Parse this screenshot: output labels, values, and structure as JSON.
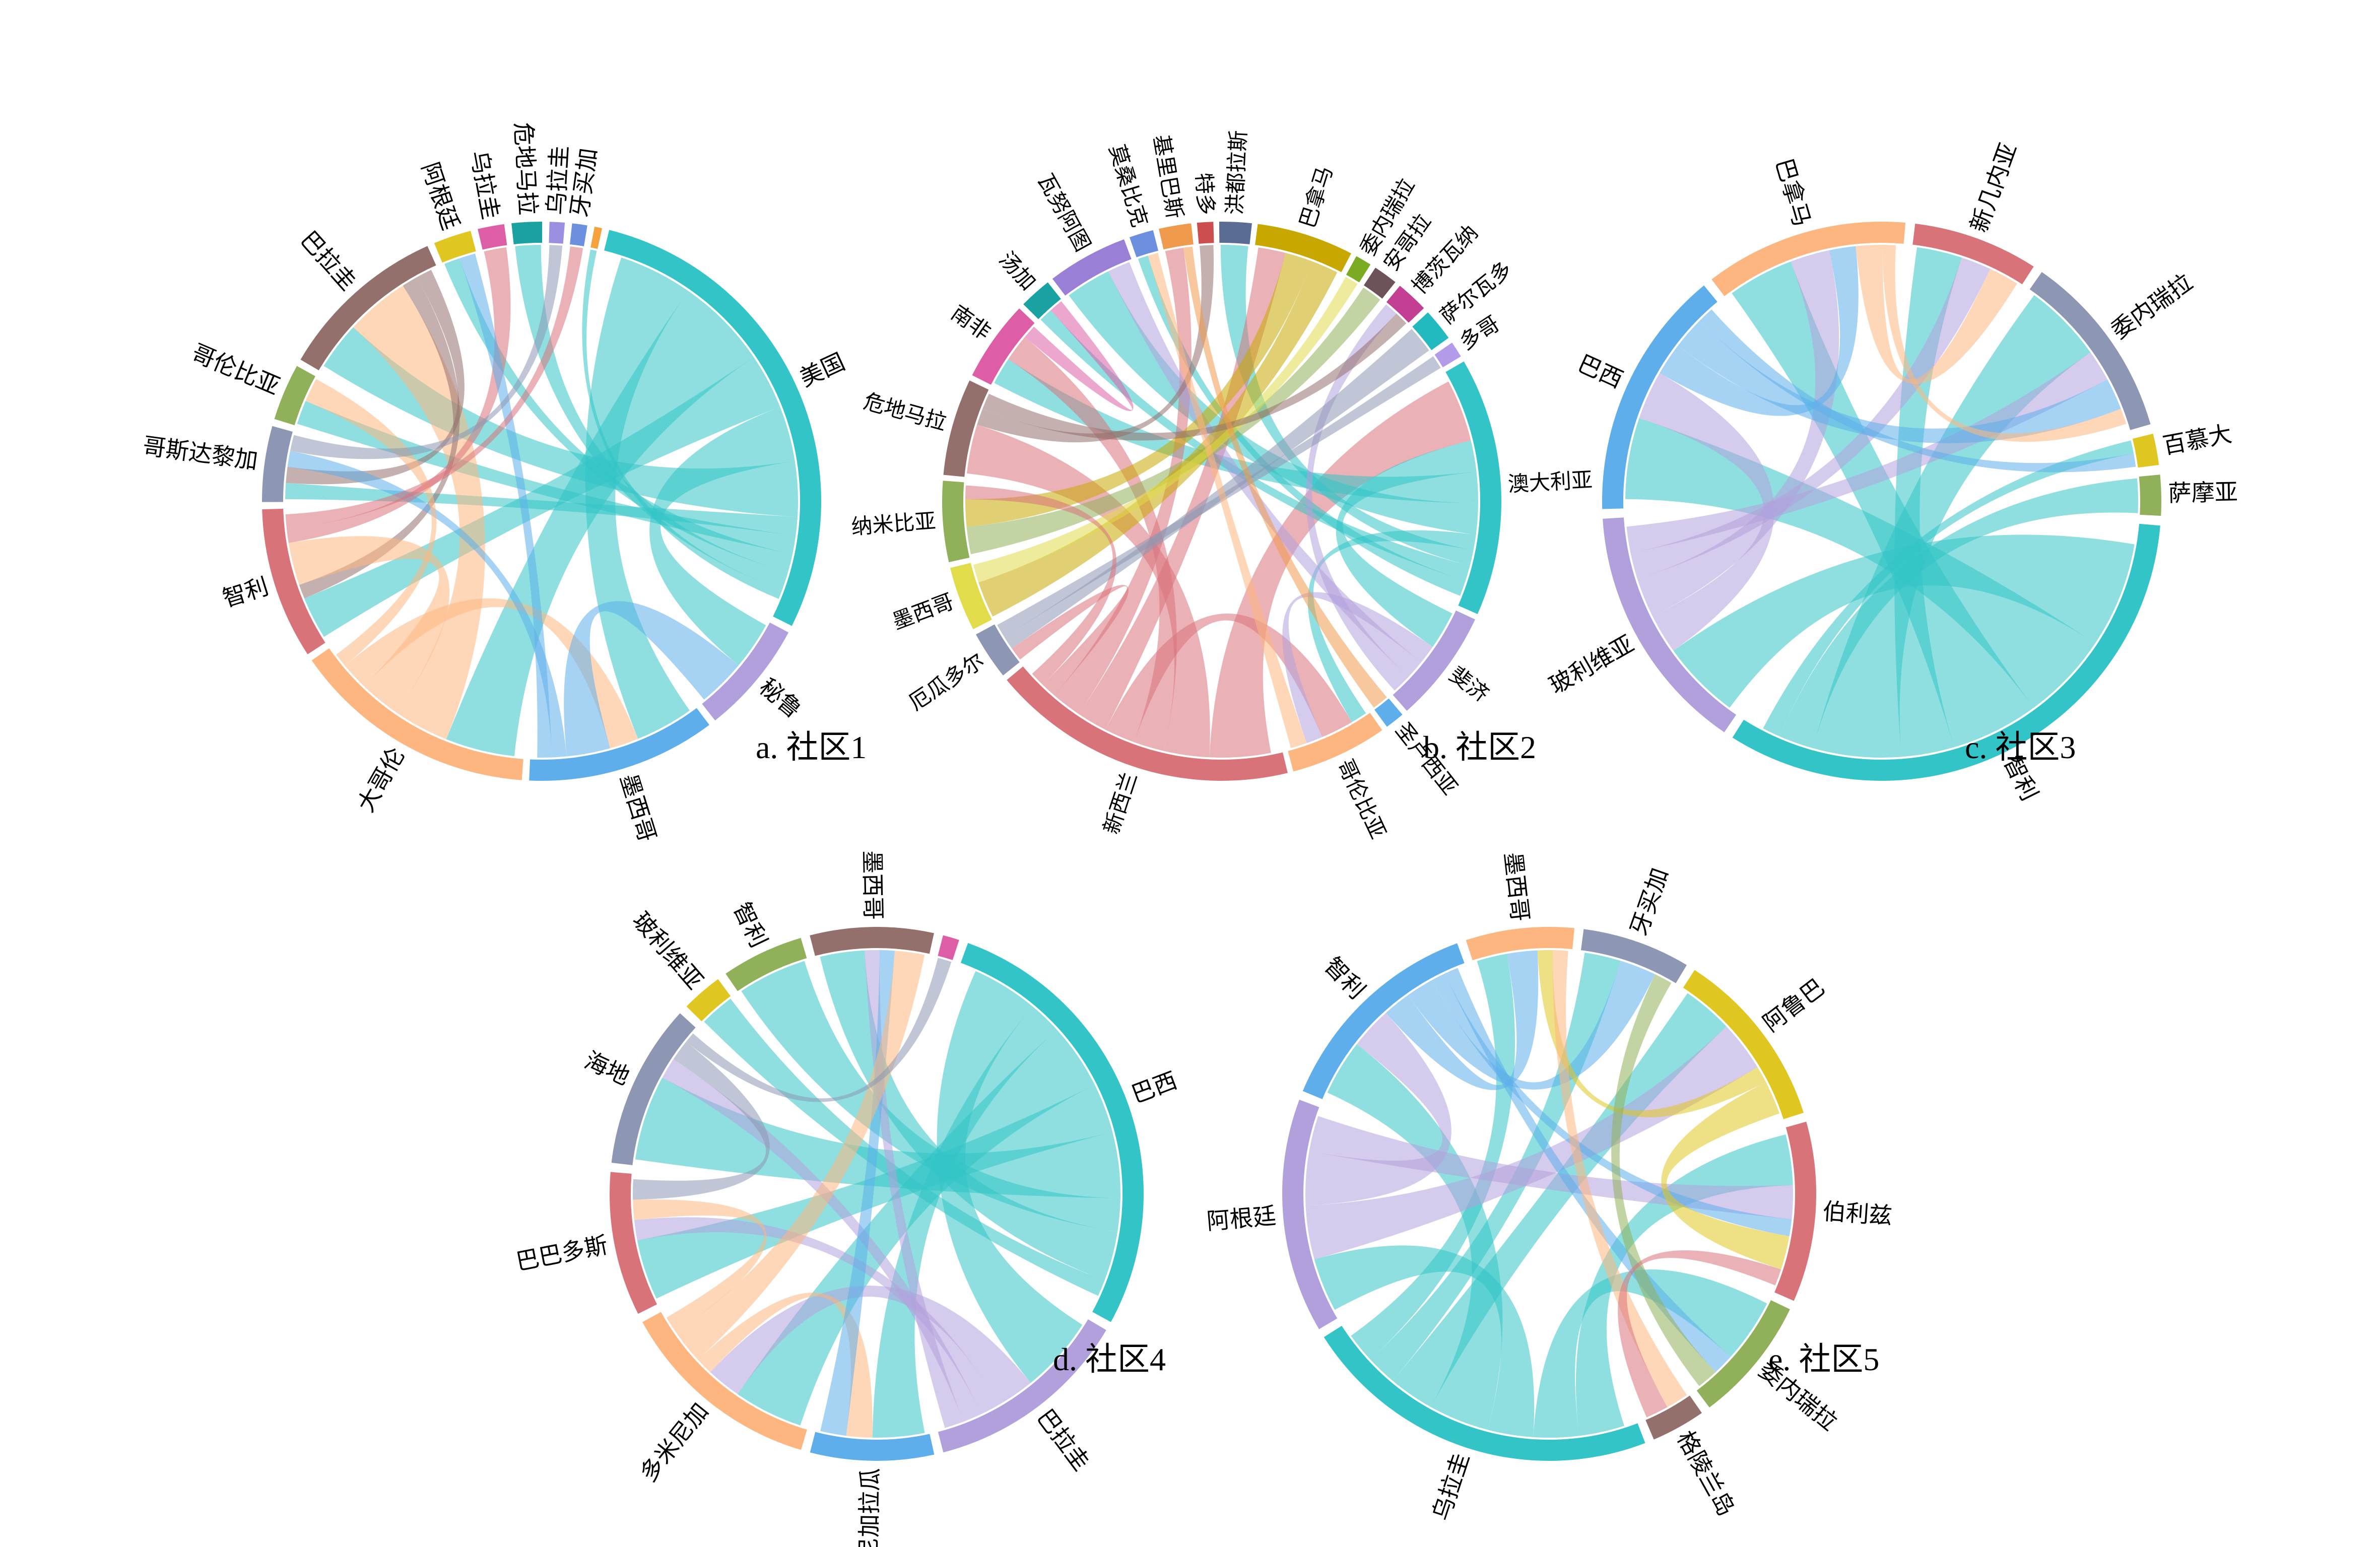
{
  "chart_data": [
    {
      "type": "chord",
      "title": "a. 社区1",
      "nodes": [
        {
          "name": "美国",
          "value": 26,
          "color": "#33c4c7"
        },
        {
          "name": "秘鲁",
          "value": 6,
          "color": "#b2a0dc"
        },
        {
          "name": "墨西哥",
          "value": 10,
          "color": "#5daeeb"
        },
        {
          "name": "大哥伦",
          "value": 13,
          "color": "#fdb680"
        },
        {
          "name": "智利",
          "value": 8,
          "color": "#d9737a"
        },
        {
          "name": "哥斯达黎加",
          "value": 4,
          "color": "#8d97b3"
        },
        {
          "name": "哥伦比亚",
          "value": 3,
          "color": "#91b05a"
        },
        {
          "name": "巴拉圭",
          "value": 9,
          "color": "#93706b"
        },
        {
          "name": "阿根廷",
          "value": 2,
          "color": "#e0c620"
        },
        {
          "name": "乌拉圭",
          "value": 1.4,
          "color": "#dd5ea6"
        },
        {
          "name": "危地马拉",
          "value": 1.6,
          "color": "#1aa1a1"
        },
        {
          "name": "乌拉圭",
          "value": 0.8,
          "color": "#9a8fe0"
        },
        {
          "name": "牙买加",
          "value": 0.8,
          "color": "#6c8fe0"
        },
        {
          "name": "",
          "value": 0.4,
          "color": "#f6a23c"
        }
      ],
      "links": [
        [
          0,
          2,
          4
        ],
        [
          0,
          3,
          5
        ],
        [
          0,
          4,
          3
        ],
        [
          0,
          1,
          3
        ],
        [
          0,
          7,
          3
        ],
        [
          0,
          5,
          1
        ],
        [
          0,
          6,
          1
        ],
        [
          0,
          8,
          1
        ],
        [
          7,
          3,
          4
        ],
        [
          7,
          4,
          1
        ],
        [
          7,
          5,
          1
        ],
        [
          3,
          4,
          3
        ],
        [
          3,
          2,
          2
        ],
        [
          1,
          2,
          3
        ],
        [
          2,
          5,
          1
        ],
        [
          4,
          9,
          1
        ],
        [
          6,
          3,
          1
        ],
        [
          8,
          2,
          1
        ],
        [
          10,
          0,
          1
        ],
        [
          11,
          5,
          1
        ],
        [
          12,
          4,
          1
        ],
        [
          13,
          0,
          0.5
        ]
      ]
    },
    {
      "type": "chord",
      "title": "b. 社区2",
      "nodes": [
        {
          "name": "澳大利亚",
          "value": 16,
          "color": "#33c4c7"
        },
        {
          "name": "斐济",
          "value": 7,
          "color": "#b2a0dc"
        },
        {
          "name": "圣卢西亚",
          "value": 1.2,
          "color": "#5daeeb"
        },
        {
          "name": "哥伦比亚",
          "value": 6,
          "color": "#fdb680"
        },
        {
          "name": "新西兰",
          "value": 19,
          "color": "#d9737a"
        },
        {
          "name": "厄瓜多尔",
          "value": 3,
          "color": "#8d97b3"
        },
        {
          "name": "墨西哥",
          "value": 4,
          "color": "#e0dc4a"
        },
        {
          "name": "纳米比亚",
          "value": 5,
          "color": "#91b05a"
        },
        {
          "name": "危地马拉",
          "value": 6,
          "color": "#93706b"
        },
        {
          "name": "南非",
          "value": 5,
          "color": "#dd5ea6"
        },
        {
          "name": "汤加",
          "value": 2,
          "color": "#1aa1a1"
        },
        {
          "name": "瓦努阿图",
          "value": 5,
          "color": "#9a7fd6"
        },
        {
          "name": "莫桑比克",
          "value": 1.5,
          "color": "#6c8fe0"
        },
        {
          "name": "基里巴斯",
          "value": 2,
          "color": "#f09a4e"
        },
        {
          "name": "特多",
          "value": 1,
          "color": "#cc4e4e"
        },
        {
          "name": "洪都拉斯",
          "value": 2,
          "color": "#5a6b94"
        },
        {
          "name": "巴拿马",
          "value": 6,
          "color": "#c8a800"
        },
        {
          "name": "委内瑞拉",
          "value": 1,
          "color": "#7aab22"
        },
        {
          "name": "安哥拉",
          "value": 1.5,
          "color": "#6e5259"
        },
        {
          "name": "博茨瓦纳",
          "value": 2,
          "color": "#c23f94"
        },
        {
          "name": "萨尔瓦多",
          "value": 2,
          "color": "#22b9bf"
        },
        {
          "name": "多哥",
          "value": 1,
          "color": "#b39bea"
        }
      ],
      "links": [
        [
          0,
          4,
          4
        ],
        [
          0,
          1,
          2
        ],
        [
          0,
          9,
          2
        ],
        [
          0,
          11,
          2
        ],
        [
          0,
          3,
          1
        ],
        [
          0,
          15,
          1
        ],
        [
          0,
          10,
          1
        ],
        [
          0,
          12,
          1
        ],
        [
          4,
          8,
          3
        ],
        [
          4,
          9,
          2
        ],
        [
          4,
          3,
          2
        ],
        [
          4,
          16,
          2
        ],
        [
          4,
          13,
          2
        ],
        [
          4,
          5,
          1
        ],
        [
          1,
          3,
          1
        ],
        [
          1,
          11,
          1
        ],
        [
          1,
          19,
          1
        ],
        [
          7,
          18,
          2
        ],
        [
          7,
          16,
          2
        ],
        [
          6,
          16,
          2
        ],
        [
          6,
          17,
          1
        ],
        [
          5,
          20,
          1
        ],
        [
          5,
          21,
          1
        ],
        [
          8,
          14,
          1
        ],
        [
          8,
          19,
          1
        ],
        [
          3,
          12,
          1
        ],
        [
          2,
          13,
          1
        ],
        [
          10,
          9,
          1
        ],
        [
          7,
          4,
          1
        ]
      ]
    },
    {
      "type": "chord",
      "title": "c. 社区3",
      "nodes": [
        {
          "name": "智利",
          "value": 36,
          "color": "#33c4c7"
        },
        {
          "name": "玻利维亚",
          "value": 16,
          "color": "#b2a0dc"
        },
        {
          "name": "巴西",
          "value": 16,
          "color": "#5daeeb"
        },
        {
          "name": "巴拿马",
          "value": 13,
          "color": "#fdb680"
        },
        {
          "name": "新几内亚",
          "value": 8,
          "color": "#d9737a"
        },
        {
          "name": "委内瑞拉",
          "value": 12,
          "color": "#8d97b3"
        },
        {
          "name": "百慕大",
          "value": 2,
          "color": "#e0c620"
        },
        {
          "name": "萨摩亚",
          "value": 2.6,
          "color": "#91b05a"
        }
      ],
      "links": [
        [
          0,
          1,
          6
        ],
        [
          0,
          2,
          5
        ],
        [
          0,
          3,
          5
        ],
        [
          0,
          4,
          3
        ],
        [
          0,
          5,
          5
        ],
        [
          0,
          7,
          2
        ],
        [
          0,
          6,
          1
        ],
        [
          1,
          2,
          3
        ],
        [
          1,
          3,
          3
        ],
        [
          1,
          4,
          2
        ],
        [
          1,
          5,
          2
        ],
        [
          2,
          3,
          2
        ],
        [
          2,
          5,
          2
        ],
        [
          2,
          6,
          1
        ],
        [
          3,
          4,
          2
        ],
        [
          3,
          5,
          1
        ]
      ]
    },
    {
      "type": "chord",
      "title": "d. 社区4",
      "nodes": [
        {
          "name": "巴西",
          "value": 22,
          "color": "#33c4c7"
        },
        {
          "name": "巴拉圭",
          "value": 10,
          "color": "#b2a0dc"
        },
        {
          "name": "尼加拉瓜",
          "value": 6,
          "color": "#5daeeb"
        },
        {
          "name": "多米尼加",
          "value": 10,
          "color": "#fdb680"
        },
        {
          "name": "巴巴多斯",
          "value": 7,
          "color": "#d9737a"
        },
        {
          "name": "海地",
          "value": 8,
          "color": "#8d97b3"
        },
        {
          "name": "玻利维亚",
          "value": 2,
          "color": "#e0c620"
        },
        {
          "name": "智利",
          "value": 4,
          "color": "#91b05a"
        },
        {
          "name": "墨西哥",
          "value": 6,
          "color": "#93706b"
        },
        {
          "name": "",
          "value": 0.8,
          "color": "#dd5ea6"
        }
      ],
      "links": [
        [
          0,
          1,
          4
        ],
        [
          0,
          2,
          2
        ],
        [
          0,
          3,
          4
        ],
        [
          0,
          4,
          3
        ],
        [
          0,
          5,
          4
        ],
        [
          0,
          7,
          2
        ],
        [
          0,
          8,
          3
        ],
        [
          0,
          6,
          1
        ],
        [
          1,
          3,
          2
        ],
        [
          1,
          4,
          1
        ],
        [
          1,
          5,
          1
        ],
        [
          1,
          8,
          1
        ],
        [
          2,
          3,
          1
        ],
        [
          2,
          8,
          1
        ],
        [
          3,
          8,
          2
        ],
        [
          3,
          4,
          1
        ],
        [
          4,
          5,
          1
        ],
        [
          5,
          9,
          0.5
        ]
      ]
    },
    {
      "type": "chord",
      "title": "e. 社区5",
      "nodes": [
        {
          "name": "阿鲁巴",
          "value": 10,
          "color": "#e0c620"
        },
        {
          "name": "伯利兹",
          "value": 10,
          "color": "#d9737a"
        },
        {
          "name": "委内瑞拉",
          "value": 7,
          "color": "#91b05a"
        },
        {
          "name": "格陵兰岛",
          "value": 3,
          "color": "#93706b"
        },
        {
          "name": "乌拉圭",
          "value": 20,
          "color": "#33c4c7"
        },
        {
          "name": "阿根廷",
          "value": 13,
          "color": "#b2a0dc"
        },
        {
          "name": "智利",
          "value": 12,
          "color": "#5daeeb"
        },
        {
          "name": "墨西哥",
          "value": 6,
          "color": "#fdb680"
        },
        {
          "name": "牙买加",
          "value": 6,
          "color": "#8d97b3"
        }
      ],
      "links": [
        [
          4,
          1,
          3
        ],
        [
          4,
          2,
          3
        ],
        [
          4,
          5,
          3
        ],
        [
          4,
          6,
          4
        ],
        [
          4,
          0,
          3
        ],
        [
          4,
          8,
          2
        ],
        [
          4,
          7,
          2
        ],
        [
          5,
          0,
          3
        ],
        [
          5,
          6,
          3
        ],
        [
          5,
          1,
          2
        ],
        [
          6,
          7,
          2
        ],
        [
          6,
          8,
          2
        ],
        [
          6,
          1,
          1
        ],
        [
          6,
          2,
          1
        ],
        [
          0,
          7,
          1
        ],
        [
          0,
          1,
          2
        ],
        [
          7,
          3,
          1
        ],
        [
          8,
          2,
          1
        ],
        [
          3,
          1,
          1
        ]
      ]
    }
  ]
}
